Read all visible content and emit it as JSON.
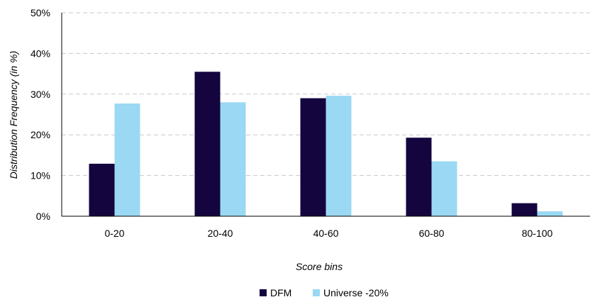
{
  "chart_data": {
    "type": "bar",
    "title": "",
    "xlabel": "Score bins",
    "ylabel": "Distribution Frequency (in %)",
    "categories": [
      "0-20",
      "20-40",
      "40-60",
      "60-80",
      "80-100"
    ],
    "series": [
      {
        "name": "DFM",
        "color": "#14053f",
        "values": [
          12.9,
          35.5,
          29.0,
          19.3,
          3.2
        ]
      },
      {
        "name": "Universe -20%",
        "color": "#9bd8f3",
        "values": [
          27.7,
          28.0,
          29.6,
          13.5,
          1.2
        ]
      }
    ],
    "ylim": [
      0,
      50
    ],
    "yticks": [
      "0%",
      "10%",
      "20%",
      "30%",
      "40%",
      "50%"
    ],
    "grid": true,
    "legend": "bottom-center"
  }
}
